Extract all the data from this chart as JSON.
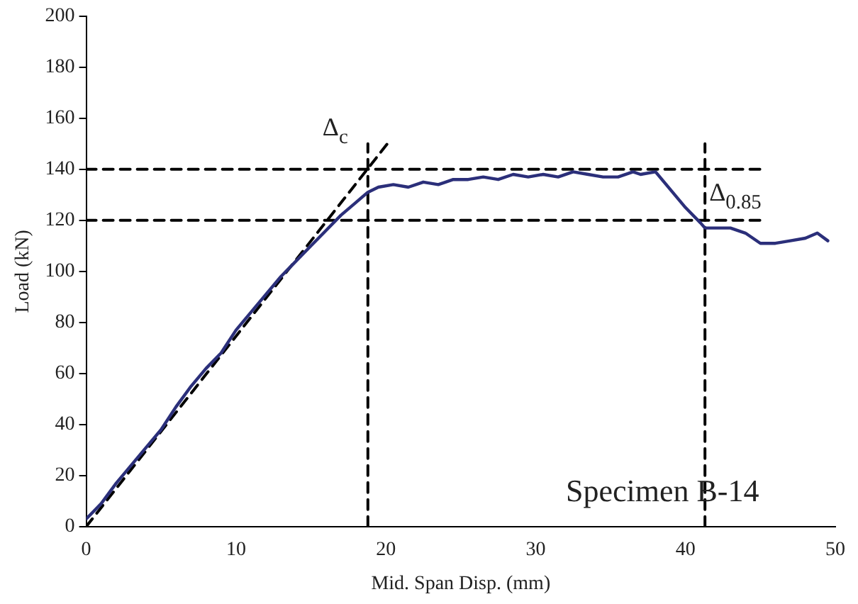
{
  "chart_data": {
    "type": "line",
    "xlabel": "Mid. Span Disp. (mm)",
    "ylabel": "Load (kN)",
    "xlim": [
      0,
      50
    ],
    "ylim": [
      0,
      200
    ],
    "xticks": [
      0,
      10,
      20,
      30,
      40,
      50
    ],
    "yticks": [
      0,
      20,
      40,
      60,
      80,
      100,
      120,
      140,
      160,
      180,
      200
    ],
    "grid": false,
    "legend": false,
    "marker": "none",
    "series": [
      {
        "color": "#2b2f7a",
        "line_style": "solid",
        "x": [
          0,
          1,
          2,
          3,
          4,
          5,
          6,
          7,
          8,
          9,
          10,
          11,
          12,
          13,
          14,
          15,
          16,
          17,
          18,
          18.8,
          19.5,
          20.5,
          21.5,
          22.5,
          23.5,
          24.5,
          25.5,
          26.5,
          27.5,
          28.5,
          29.5,
          30.5,
          31.5,
          32.5,
          33.5,
          34.5,
          35.5,
          36.5,
          37,
          38,
          39,
          40,
          41,
          41.3,
          42,
          43,
          44,
          45,
          46,
          47,
          48,
          48.8,
          49.5
        ],
        "values": [
          3,
          9,
          17,
          24,
          31,
          38,
          47,
          55,
          62,
          68,
          77,
          84,
          91,
          98,
          104,
          110,
          116,
          122,
          127,
          131,
          133,
          134,
          133,
          135,
          134,
          136,
          136,
          137,
          136,
          138,
          137,
          138,
          137,
          139,
          138,
          137,
          137,
          139,
          138,
          139,
          132,
          125,
          119,
          117,
          117,
          117,
          115,
          111,
          111,
          112,
          113,
          115,
          112
        ]
      },
      {
        "color": "#000000",
        "line_style": "dashed",
        "x": [
          0,
          20.1
        ],
        "values": [
          0,
          150
        ]
      },
      {
        "color": "#000000",
        "line_style": "dashed",
        "x": [
          0,
          45
        ],
        "values": [
          140,
          140
        ]
      },
      {
        "color": "#000000",
        "line_style": "dashed",
        "x": [
          0,
          45
        ],
        "values": [
          120,
          120
        ]
      },
      {
        "color": "#000000",
        "line_style": "dashed",
        "x": [
          18.8,
          18.8
        ],
        "values": [
          0,
          150
        ]
      },
      {
        "color": "#000000",
        "line_style": "dashed",
        "x": [
          41.3,
          41.3
        ],
        "values": [
          0,
          150
        ]
      }
    ],
    "annotations": [
      {
        "text": "Δ$_{c}$",
        "x": 18.8,
        "y": 150
      },
      {
        "text": "Δ$_{0.85}$",
        "x": 41.3,
        "y": 120
      },
      "Specimen B-14"
    ]
  }
}
